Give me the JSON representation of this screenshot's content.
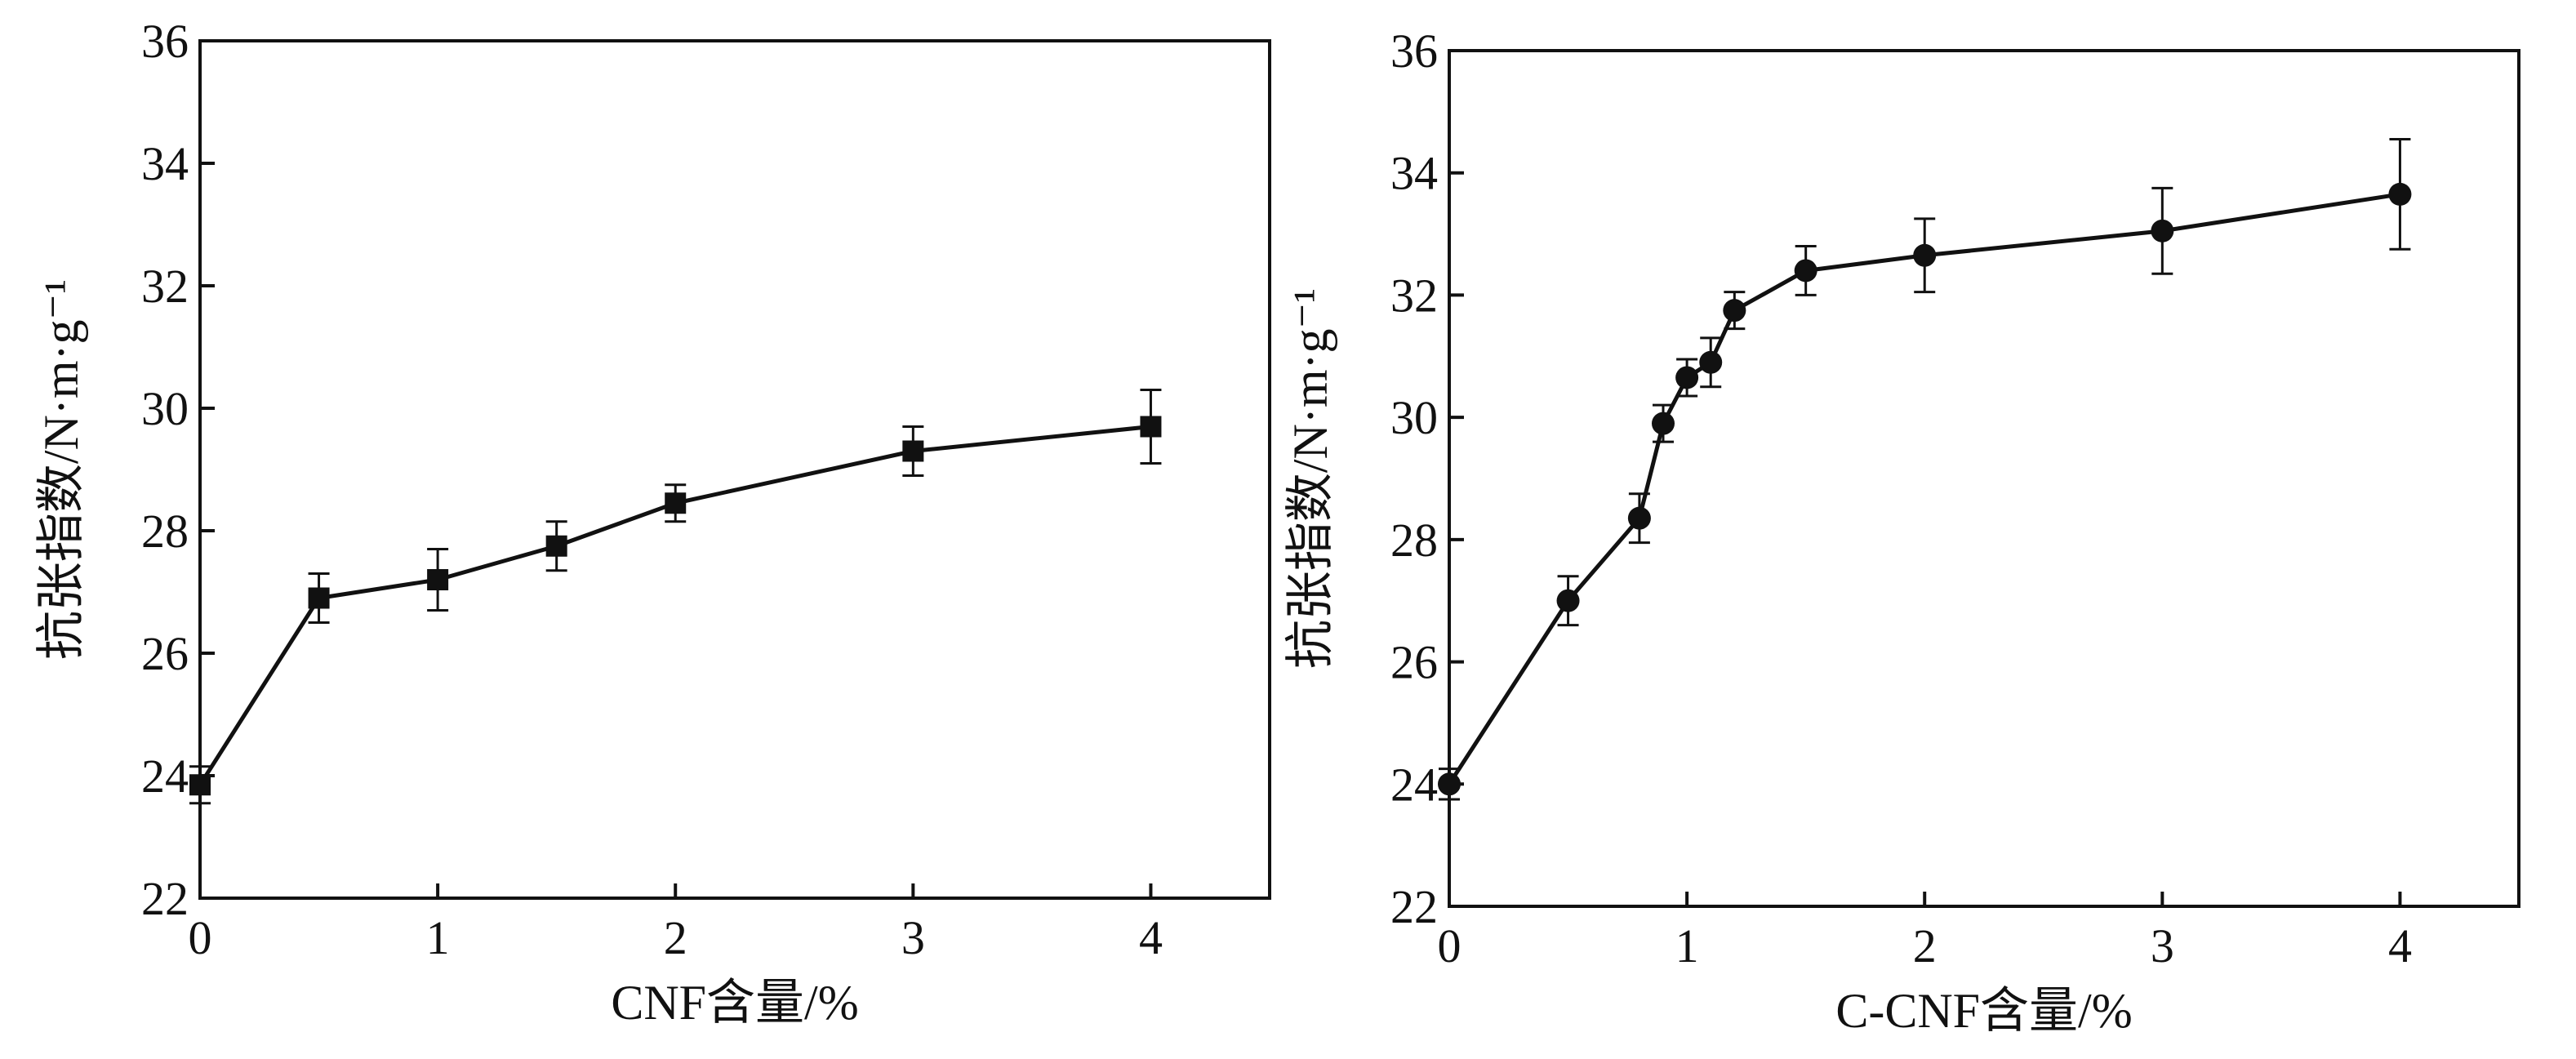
{
  "chart_data": [
    {
      "id": "left",
      "type": "line",
      "title": "",
      "xlabel": "CNF含量/%",
      "ylabel": "抗张指数/N·m·g⁻¹",
      "xlim": [
        0,
        4.5
      ],
      "ylim": [
        22,
        36
      ],
      "xticks": [
        0,
        1,
        2,
        3,
        4
      ],
      "yticks": [
        22,
        24,
        26,
        28,
        30,
        32,
        34,
        36
      ],
      "marker": "square",
      "line_color": "#111111",
      "grid": false,
      "series": [
        {
          "x": [
            0,
            0.5,
            1,
            1.5,
            2,
            3,
            4
          ],
          "y": [
            23.85,
            26.9,
            27.2,
            27.75,
            28.45,
            29.3,
            29.7
          ],
          "err": [
            0.3,
            0.4,
            0.5,
            0.4,
            0.3,
            0.4,
            0.6
          ]
        }
      ]
    },
    {
      "id": "right",
      "type": "line",
      "title": "",
      "xlabel": "C-CNF含量/%",
      "ylabel": "抗张指数/N·m·g⁻¹",
      "xlim": [
        0,
        4.5
      ],
      "ylim": [
        22,
        36
      ],
      "xticks": [
        0,
        1,
        2,
        3,
        4
      ],
      "yticks": [
        22,
        24,
        26,
        28,
        30,
        32,
        34,
        36
      ],
      "marker": "circle",
      "line_color": "#111111",
      "grid": false,
      "series": [
        {
          "x": [
            0,
            0.5,
            0.8,
            0.9,
            1.0,
            1.1,
            1.2,
            1.5,
            2,
            3,
            4
          ],
          "y": [
            24.0,
            27.0,
            28.35,
            29.9,
            30.65,
            30.9,
            31.75,
            32.4,
            32.65,
            33.05,
            33.65
          ],
          "err": [
            0.25,
            0.4,
            0.4,
            0.3,
            0.3,
            0.4,
            0.3,
            0.4,
            0.6,
            0.7,
            0.9
          ]
        }
      ]
    }
  ]
}
